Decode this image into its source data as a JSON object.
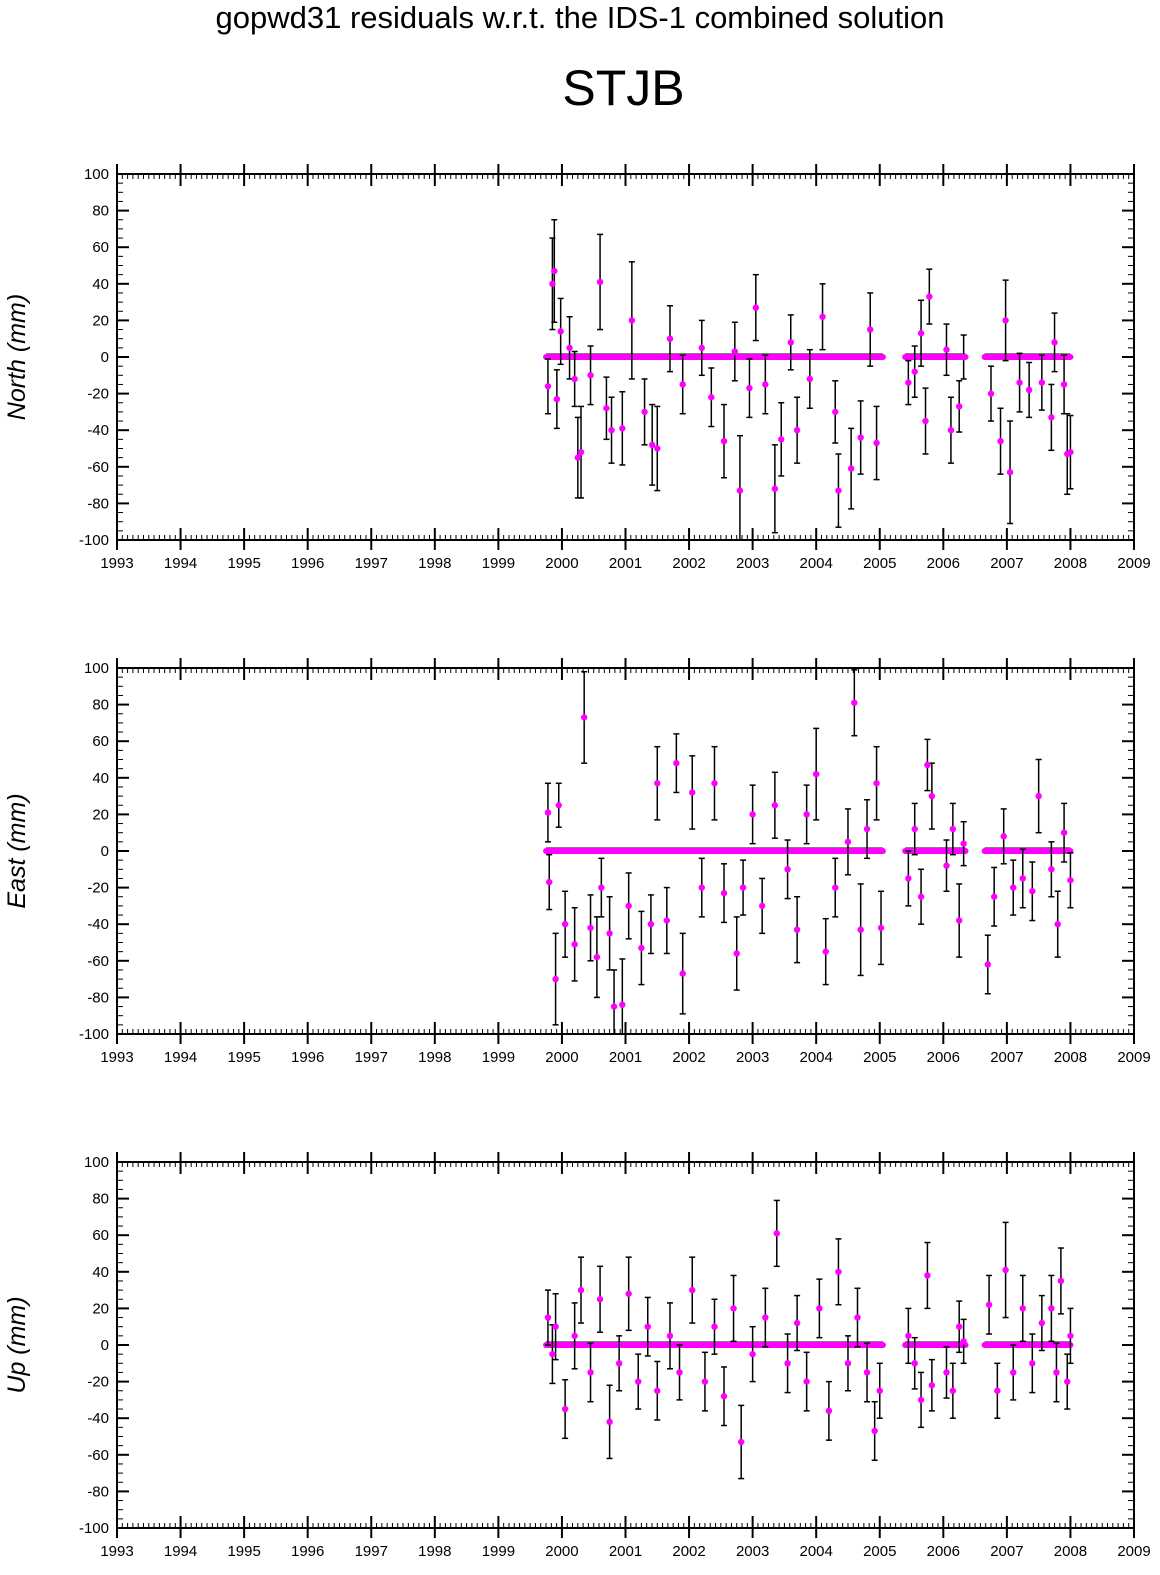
{
  "header": {
    "supertitle": "gopwd31 residuals w.r.t. the IDS-1 combined solution",
    "station": "STJB"
  },
  "colors": {
    "points": "#ff00ff",
    "error_bars": "#000000",
    "axes": "#000000"
  },
  "chart_data": [
    {
      "type": "scatter",
      "component": "North",
      "ylabel": "North (mm)",
      "xlim": [
        1993,
        2009
      ],
      "ylim": [
        -100,
        100
      ],
      "xticks": [
        1993,
        1994,
        1995,
        1996,
        1997,
        1998,
        1999,
        2000,
        2001,
        2002,
        2003,
        2004,
        2005,
        2006,
        2007,
        2008,
        2009
      ],
      "yticks": [
        -100,
        -80,
        -60,
        -40,
        -20,
        0,
        20,
        40,
        60,
        80,
        100
      ],
      "error_bars": true,
      "baseline": 0,
      "segments": [
        [
          1999.75,
          2005.05
        ],
        [
          2005.4,
          2006.35
        ],
        [
          2006.65,
          2008.0
        ]
      ],
      "points": [
        [
          1999.78,
          -16,
          15
        ],
        [
          1999.85,
          40,
          25
        ],
        [
          1999.88,
          47,
          28
        ],
        [
          1999.92,
          -23,
          16
        ],
        [
          1999.98,
          14,
          18
        ],
        [
          2000.12,
          5,
          17
        ],
        [
          2000.2,
          -12,
          15
        ],
        [
          2000.25,
          -55,
          22
        ],
        [
          2000.3,
          -52,
          25
        ],
        [
          2000.45,
          -10,
          16
        ],
        [
          2000.6,
          41,
          26
        ],
        [
          2000.7,
          -28,
          17
        ],
        [
          2000.78,
          -40,
          18
        ],
        [
          2000.95,
          -39,
          20
        ],
        [
          2001.1,
          20,
          32
        ],
        [
          2001.3,
          -30,
          18
        ],
        [
          2001.42,
          -48,
          22
        ],
        [
          2001.5,
          -50,
          23
        ],
        [
          2001.7,
          10,
          18
        ],
        [
          2001.9,
          -15,
          16
        ],
        [
          2002.2,
          5,
          15
        ],
        [
          2002.35,
          -22,
          16
        ],
        [
          2002.55,
          -46,
          20
        ],
        [
          2002.72,
          3,
          16
        ],
        [
          2002.8,
          -73,
          30
        ],
        [
          2002.95,
          -17,
          16
        ],
        [
          2003.05,
          27,
          18
        ],
        [
          2003.2,
          -15,
          16
        ],
        [
          2003.35,
          -72,
          24
        ],
        [
          2003.45,
          -45,
          20
        ],
        [
          2003.6,
          8,
          15
        ],
        [
          2003.7,
          -40,
          18
        ],
        [
          2003.9,
          -12,
          16
        ],
        [
          2004.1,
          22,
          18
        ],
        [
          2004.3,
          -30,
          17
        ],
        [
          2004.35,
          -73,
          20
        ],
        [
          2004.55,
          -61,
          22
        ],
        [
          2004.7,
          -44,
          20
        ],
        [
          2004.85,
          15,
          20
        ],
        [
          2004.95,
          -47,
          20
        ],
        [
          2005.45,
          -14,
          12
        ],
        [
          2005.55,
          -8,
          14
        ],
        [
          2005.65,
          13,
          18
        ],
        [
          2005.72,
          -35,
          18
        ],
        [
          2005.78,
          33,
          15
        ],
        [
          2006.05,
          4,
          14
        ],
        [
          2006.12,
          -40,
          18
        ],
        [
          2006.25,
          -27,
          14
        ],
        [
          2006.32,
          0,
          12
        ],
        [
          2006.75,
          -20,
          15
        ],
        [
          2006.9,
          -46,
          18
        ],
        [
          2006.98,
          20,
          22
        ],
        [
          2007.05,
          -63,
          28
        ],
        [
          2007.2,
          -14,
          16
        ],
        [
          2007.35,
          -18,
          15
        ],
        [
          2007.55,
          -14,
          15
        ],
        [
          2007.7,
          -33,
          18
        ],
        [
          2007.75,
          8,
          16
        ],
        [
          2007.9,
          -15,
          16
        ],
        [
          2007.95,
          -53,
          22
        ],
        [
          2008.0,
          -52,
          20
        ]
      ]
    },
    {
      "type": "scatter",
      "component": "East",
      "ylabel": "East (mm)",
      "xlim": [
        1993,
        2009
      ],
      "ylim": [
        -100,
        100
      ],
      "xticks": [
        1993,
        1994,
        1995,
        1996,
        1997,
        1998,
        1999,
        2000,
        2001,
        2002,
        2003,
        2004,
        2005,
        2006,
        2007,
        2008,
        2009
      ],
      "yticks": [
        -100,
        -80,
        -60,
        -40,
        -20,
        0,
        20,
        40,
        60,
        80,
        100
      ],
      "error_bars": true,
      "baseline": 0,
      "segments": [
        [
          1999.75,
          2005.05
        ],
        [
          2005.4,
          2006.35
        ],
        [
          2006.65,
          2008.0
        ]
      ],
      "points": [
        [
          1999.78,
          21,
          16
        ],
        [
          1999.8,
          -17,
          15
        ],
        [
          1999.9,
          -70,
          25
        ],
        [
          1999.95,
          25,
          12
        ],
        [
          2000.05,
          -40,
          18
        ],
        [
          2000.2,
          -51,
          20
        ],
        [
          2000.35,
          73,
          25
        ],
        [
          2000.45,
          -42,
          18
        ],
        [
          2000.55,
          -58,
          22
        ],
        [
          2000.62,
          -20,
          16
        ],
        [
          2000.75,
          -45,
          20
        ],
        [
          2000.82,
          -85,
          20
        ],
        [
          2000.95,
          -84,
          25
        ],
        [
          2001.05,
          -30,
          18
        ],
        [
          2001.25,
          -53,
          20
        ],
        [
          2001.4,
          -40,
          16
        ],
        [
          2001.5,
          37,
          20
        ],
        [
          2001.65,
          -38,
          18
        ],
        [
          2001.8,
          48,
          16
        ],
        [
          2001.9,
          -67,
          22
        ],
        [
          2002.05,
          32,
          20
        ],
        [
          2002.2,
          -20,
          16
        ],
        [
          2002.4,
          37,
          20
        ],
        [
          2002.55,
          -23,
          16
        ],
        [
          2002.75,
          -56,
          20
        ],
        [
          2002.85,
          -20,
          15
        ],
        [
          2003.0,
          20,
          16
        ],
        [
          2003.15,
          -30,
          15
        ],
        [
          2003.35,
          25,
          18
        ],
        [
          2003.55,
          -10,
          16
        ],
        [
          2003.7,
          -43,
          18
        ],
        [
          2003.85,
          20,
          16
        ],
        [
          2004.0,
          42,
          25
        ],
        [
          2004.15,
          -55,
          18
        ],
        [
          2004.3,
          -20,
          16
        ],
        [
          2004.5,
          5,
          18
        ],
        [
          2004.6,
          81,
          18
        ],
        [
          2004.7,
          -43,
          25
        ],
        [
          2004.8,
          12,
          16
        ],
        [
          2004.95,
          37,
          20
        ],
        [
          2005.02,
          -42,
          20
        ],
        [
          2005.45,
          -15,
          15
        ],
        [
          2005.55,
          12,
          14
        ],
        [
          2005.65,
          -25,
          15
        ],
        [
          2005.75,
          47,
          14
        ],
        [
          2005.82,
          30,
          18
        ],
        [
          2006.05,
          -8,
          14
        ],
        [
          2006.15,
          12,
          14
        ],
        [
          2006.25,
          -38,
          20
        ],
        [
          2006.32,
          4,
          12
        ],
        [
          2006.7,
          -62,
          16
        ],
        [
          2006.8,
          -25,
          16
        ],
        [
          2006.95,
          8,
          15
        ],
        [
          2007.1,
          -20,
          15
        ],
        [
          2007.25,
          -15,
          16
        ],
        [
          2007.4,
          -22,
          16
        ],
        [
          2007.5,
          30,
          20
        ],
        [
          2007.7,
          -10,
          15
        ],
        [
          2007.8,
          -40,
          18
        ],
        [
          2007.9,
          10,
          16
        ],
        [
          2008.0,
          -16,
          15
        ]
      ]
    },
    {
      "type": "scatter",
      "component": "Up",
      "ylabel": "Up (mm)",
      "xlim": [
        1993,
        2009
      ],
      "ylim": [
        -100,
        100
      ],
      "xticks": [
        1993,
        1994,
        1995,
        1996,
        1997,
        1998,
        1999,
        2000,
        2001,
        2002,
        2003,
        2004,
        2005,
        2006,
        2007,
        2008,
        2009
      ],
      "yticks": [
        -100,
        -80,
        -60,
        -40,
        -20,
        0,
        20,
        40,
        60,
        80,
        100
      ],
      "error_bars": true,
      "baseline": 0,
      "segments": [
        [
          1999.75,
          2005.05
        ],
        [
          2005.4,
          2006.35
        ],
        [
          2006.65,
          2008.0
        ]
      ],
      "points": [
        [
          1999.78,
          15,
          15
        ],
        [
          1999.85,
          -5,
          16
        ],
        [
          1999.9,
          10,
          18
        ],
        [
          2000.05,
          -35,
          16
        ],
        [
          2000.2,
          5,
          18
        ],
        [
          2000.3,
          30,
          18
        ],
        [
          2000.45,
          -15,
          16
        ],
        [
          2000.6,
          25,
          18
        ],
        [
          2000.75,
          -42,
          20
        ],
        [
          2000.9,
          -10,
          15
        ],
        [
          2001.05,
          28,
          20
        ],
        [
          2001.2,
          -20,
          15
        ],
        [
          2001.35,
          10,
          16
        ],
        [
          2001.5,
          -25,
          16
        ],
        [
          2001.7,
          5,
          18
        ],
        [
          2001.85,
          -15,
          15
        ],
        [
          2002.05,
          30,
          18
        ],
        [
          2002.25,
          -20,
          16
        ],
        [
          2002.4,
          10,
          15
        ],
        [
          2002.55,
          -28,
          16
        ],
        [
          2002.7,
          20,
          18
        ],
        [
          2002.82,
          -53,
          20
        ],
        [
          2003.0,
          -5,
          15
        ],
        [
          2003.2,
          15,
          16
        ],
        [
          2003.38,
          61,
          18
        ],
        [
          2003.55,
          -10,
          16
        ],
        [
          2003.7,
          12,
          15
        ],
        [
          2003.85,
          -20,
          16
        ],
        [
          2004.05,
          20,
          16
        ],
        [
          2004.2,
          -36,
          16
        ],
        [
          2004.35,
          40,
          18
        ],
        [
          2004.5,
          -10,
          15
        ],
        [
          2004.65,
          15,
          16
        ],
        [
          2004.8,
          -15,
          16
        ],
        [
          2004.92,
          -47,
          16
        ],
        [
          2005.0,
          -25,
          15
        ],
        [
          2005.45,
          5,
          15
        ],
        [
          2005.55,
          -10,
          14
        ],
        [
          2005.65,
          -30,
          15
        ],
        [
          2005.75,
          38,
          18
        ],
        [
          2005.82,
          -22,
          14
        ],
        [
          2006.05,
          -15,
          14
        ],
        [
          2006.15,
          -25,
          15
        ],
        [
          2006.25,
          10,
          14
        ],
        [
          2006.32,
          2,
          12
        ],
        [
          2006.72,
          22,
          16
        ],
        [
          2006.85,
          -25,
          15
        ],
        [
          2006.98,
          41,
          26
        ],
        [
          2007.1,
          -15,
          15
        ],
        [
          2007.25,
          20,
          18
        ],
        [
          2007.4,
          -10,
          16
        ],
        [
          2007.55,
          12,
          15
        ],
        [
          2007.7,
          20,
          18
        ],
        [
          2007.78,
          -15,
          16
        ],
        [
          2007.85,
          35,
          18
        ],
        [
          2007.95,
          -20,
          15
        ],
        [
          2008.0,
          5,
          15
        ]
      ]
    }
  ]
}
